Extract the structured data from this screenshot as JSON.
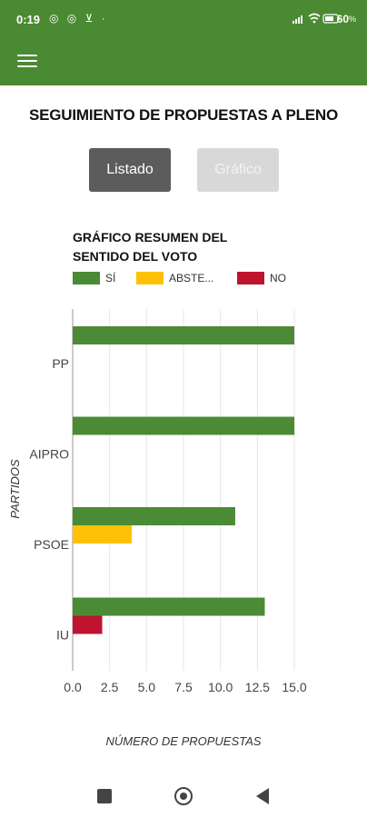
{
  "status_bar": {
    "time": "0:19",
    "left_icons": "◎ ◎ ⊻ ·",
    "battery": "60"
  },
  "page": {
    "title": "SEGUIMIENTO DE PROPUESTAS A PLENO"
  },
  "buttons": {
    "list": "Listado",
    "chart": "Gráfico"
  },
  "colors": {
    "si": "#4b8b35",
    "abstencion": "#ffc107",
    "no": "#c0142e",
    "header": "#4a8a32"
  },
  "chart_data": {
    "type": "bar",
    "orientation": "horizontal",
    "title": "GRÁFICO RESUMEN DEL SENTIDO DEL VOTO",
    "title_lines": [
      "GRÁFICO RESUMEN DEL",
      "SENTIDO DEL VOTO"
    ],
    "categories": [
      "PP",
      "AIPRO",
      "PSOE",
      "IU"
    ],
    "series": [
      {
        "name": "SÍ",
        "legend_label": "SÍ",
        "color": "#4b8b35",
        "values": [
          15,
          15,
          11,
          13
        ]
      },
      {
        "name": "ABSTENCIÓN",
        "legend_label": "ABSTE...",
        "color": "#ffc107",
        "values": [
          0,
          0,
          4,
          0
        ]
      },
      {
        "name": "NO",
        "legend_label": "NO",
        "color": "#c0142e",
        "values": [
          0,
          0,
          0,
          2
        ]
      }
    ],
    "xlabel": "NÚMERO DE PROPUESTAS",
    "ylabel": "PARTIDOS",
    "xlim": [
      0,
      15
    ],
    "x_ticks": [
      "0.0",
      "2.5",
      "5.0",
      "7.5",
      "10.0",
      "12.5",
      "15.0"
    ],
    "grid": true,
    "legend_position": "top"
  }
}
